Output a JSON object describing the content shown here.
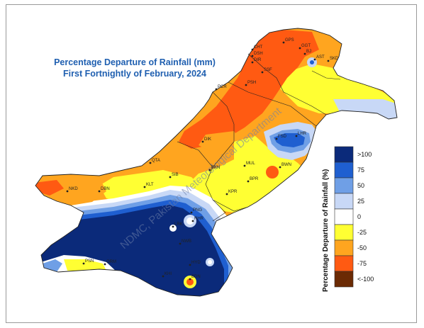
{
  "title": {
    "line1": "Percentage Departure of Rainfall (mm)",
    "line2": "First Fortnightly of February, 2024"
  },
  "watermark": "NDMC, Pakistan Meteorological Department",
  "legend": {
    "title": "Percentage Departure of Rainfall (%)",
    "items": [
      {
        "label": ">100",
        "color": "#0b2a7a"
      },
      {
        "label": "75",
        "color": "#1f5fd0"
      },
      {
        "label": "50",
        "color": "#6f9fe6"
      },
      {
        "label": "25",
        "color": "#c8d8f6"
      },
      {
        "label": "0",
        "color": "#ffffff"
      },
      {
        "label": "-25",
        "color": "#ffff33"
      },
      {
        "label": "-50",
        "color": "#ffa51f"
      },
      {
        "label": "-75",
        "color": "#ff5a12"
      },
      {
        "label": "<-100",
        "color": "#6b2a04"
      }
    ]
  },
  "stations": [
    {
      "id": "GPS",
      "label": "GPS"
    },
    {
      "id": "CHT",
      "label": "CHT"
    },
    {
      "id": "DSH",
      "label": "DSH"
    },
    {
      "id": "GGT",
      "label": "GGT"
    },
    {
      "id": "BJ",
      "label": "BJ"
    },
    {
      "id": "AST",
      "label": "AST"
    },
    {
      "id": "SKD",
      "label": "SKD"
    },
    {
      "id": "DIR",
      "label": "DIR"
    },
    {
      "id": "SSF",
      "label": "SSF"
    },
    {
      "id": "PCR",
      "label": "PCR"
    },
    {
      "id": "PSH",
      "label": "PSH"
    },
    {
      "id": "FSD",
      "label": "FSD"
    },
    {
      "id": "LHR",
      "label": "LHR"
    },
    {
      "id": "DIK",
      "label": "DIK"
    },
    {
      "id": "QTA",
      "label": "QTA"
    },
    {
      "id": "SIB",
      "label": "SIB"
    },
    {
      "id": "BKN",
      "label": "BKN"
    },
    {
      "id": "MUL",
      "label": "MUL"
    },
    {
      "id": "BWN",
      "label": "BWN"
    },
    {
      "id": "BPR",
      "label": "BPR"
    },
    {
      "id": "KLT",
      "label": "KLT"
    },
    {
      "id": "NKD",
      "label": "NKD"
    },
    {
      "id": "DBN",
      "label": "DBN"
    },
    {
      "id": "KPR",
      "label": "KPR"
    },
    {
      "id": "PNG",
      "label": "PNG"
    },
    {
      "id": "LRK",
      "label": "LRK"
    },
    {
      "id": "RHR",
      "label": "RHR"
    },
    {
      "id": "NWB",
      "label": "NWB"
    },
    {
      "id": "PSN",
      "label": "PSN"
    },
    {
      "id": "ORM",
      "label": "ORM"
    },
    {
      "id": "HYD",
      "label": "HYD"
    },
    {
      "id": "KHI",
      "label": "KHI"
    },
    {
      "id": "BDN",
      "label": "BDN"
    }
  ]
}
